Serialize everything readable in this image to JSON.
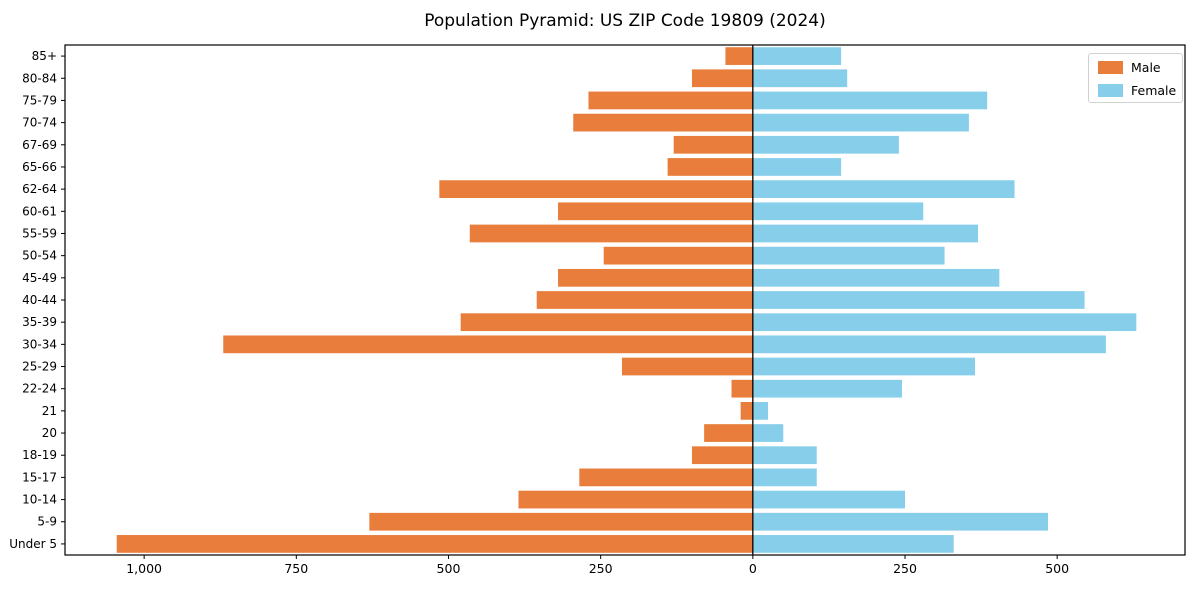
{
  "title": "Population Pyramid: US ZIP Code 19809 (2024)",
  "legend": {
    "male_label": "Male",
    "female_label": "Female"
  },
  "colors": {
    "male": "#E87D3C",
    "female": "#87CEEB",
    "axis": "#000000",
    "legend_border": "#d2d2d2"
  },
  "chart_data": {
    "type": "bar",
    "orientation": "horizontal-population-pyramid",
    "title": "Population Pyramid: US ZIP Code 19809 (2024)",
    "categories_top_to_bottom": [
      "85+",
      "80-84",
      "75-79",
      "70-74",
      "67-69",
      "65-66",
      "62-64",
      "60-61",
      "55-59",
      "50-54",
      "45-49",
      "40-44",
      "35-39",
      "30-34",
      "25-29",
      "22-24",
      "21",
      "20",
      "18-19",
      "15-17",
      "10-14",
      "5-9",
      "Under 5"
    ],
    "series": [
      {
        "name": "Male",
        "side": "left",
        "color": "#E87D3C",
        "values": [
          45,
          100,
          270,
          295,
          130,
          140,
          515,
          320,
          465,
          245,
          320,
          355,
          480,
          870,
          215,
          35,
          20,
          80,
          100,
          285,
          385,
          630,
          1045
        ]
      },
      {
        "name": "Female",
        "side": "right",
        "color": "#87CEEB",
        "values": [
          145,
          155,
          385,
          355,
          240,
          145,
          430,
          280,
          370,
          315,
          405,
          545,
          630,
          580,
          365,
          245,
          25,
          50,
          105,
          105,
          250,
          485,
          330
        ]
      }
    ],
    "x_tick_values": [
      -1000,
      -750,
      -500,
      -250,
      0,
      250,
      500
    ],
    "x_tick_labels": [
      "1,000",
      "750",
      "500",
      "250",
      "0",
      "250",
      "500"
    ],
    "xlim": [
      -1130,
      710
    ],
    "grid": false,
    "legend_position": "upper right",
    "zero_line": true
  }
}
